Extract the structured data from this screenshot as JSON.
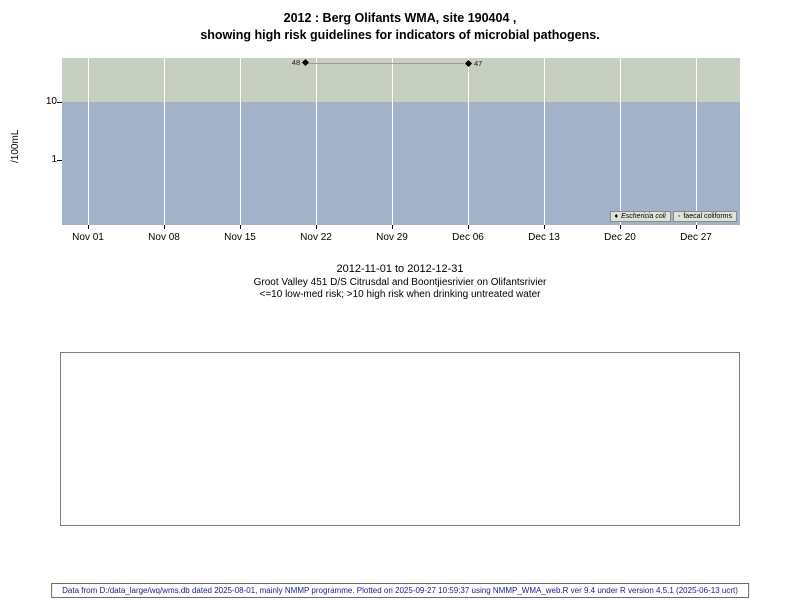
{
  "title": {
    "line1": "2012 : Berg Olifants WMA, site 190404 ,",
    "line2": "showing high risk guidelines for indicators of microbial pathogens."
  },
  "chart_data": {
    "type": "scatter",
    "title": "2012 : Berg Olifants WMA, site 190404, showing high risk guidelines for indicators of microbial pathogens.",
    "xlabel": "",
    "ylabel": "/100mL",
    "y_scale": "log10",
    "y_ticks": [
      10,
      1
    ],
    "x_ticks": [
      "Nov 01",
      "Nov 08",
      "Nov 15",
      "Nov 22",
      "Nov 29",
      "Dec 06",
      "Dec 13",
      "Dec 20",
      "Dec 27"
    ],
    "x_range": [
      "2012-11-01",
      "2012-12-31"
    ],
    "bands": [
      {
        "name": "high risk (>10)",
        "color": "#c6cfc0"
      },
      {
        "name": "low-med risk (<=10)",
        "color": "#a2b2c8"
      }
    ],
    "series": [
      {
        "name": "Eschericia coli",
        "marker": "diamond",
        "points": [
          {
            "date": "2012-11-21",
            "value": 48,
            "label": "48",
            "label_side": "left"
          },
          {
            "date": "2012-12-06",
            "value": 47,
            "label": "47",
            "label_side": "right"
          }
        ]
      },
      {
        "name": "faecal coliforms",
        "marker": "open-circle",
        "points": []
      }
    ],
    "legend_position": "bottom-right",
    "grid": "vertical-white"
  },
  "legend": {
    "items": [
      {
        "symbol": "♦",
        "label": "Eschericia coli"
      },
      {
        "symbol": "◦",
        "label": "faecal coliforms"
      }
    ]
  },
  "caption": {
    "date_range": "2012-11-01 to 2012-12-31",
    "site_description": "Groot Valley 451 D/S Citrusdal and Boontjiesrivier on Olifantsrivier",
    "risk_note": "<=10 low-med risk; >10 high risk when drinking untreated water"
  },
  "footer": {
    "text": "Data from D:/data_large/wq/wms.db dated 2025-08-01, mainly NMMP programme. Plotted on 2025-09-27 10:59:37 using NMMP_WMA_web.R ver 9.4 under R version 4.5.1 (2025-06-13 ucrt)"
  }
}
